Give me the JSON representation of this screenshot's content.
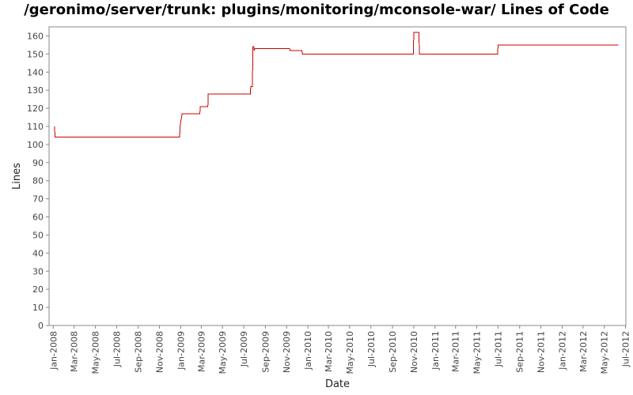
{
  "chart_data": {
    "type": "line",
    "title": "/geronimo/server/trunk: plugins/monitoring/mconsole-war/ Lines of Code",
    "xlabel": "Date",
    "ylabel": "Lines",
    "ylim": [
      0,
      165
    ],
    "xlim": [
      "2007-12-20",
      "2012-07-02"
    ],
    "y_ticks": [
      0,
      10,
      20,
      30,
      40,
      50,
      60,
      70,
      80,
      90,
      100,
      110,
      120,
      130,
      140,
      150,
      160
    ],
    "x_ticks": [
      {
        "label": "Jan-2008",
        "date": "2008-01-01"
      },
      {
        "label": "Mar-2008",
        "date": "2008-03-01"
      },
      {
        "label": "May-2008",
        "date": "2008-05-01"
      },
      {
        "label": "Jul-2008",
        "date": "2008-07-01"
      },
      {
        "label": "Sep-2008",
        "date": "2008-09-01"
      },
      {
        "label": "Nov-2008",
        "date": "2008-11-01"
      },
      {
        "label": "Jan-2009",
        "date": "2009-01-01"
      },
      {
        "label": "Mar-2009",
        "date": "2009-03-01"
      },
      {
        "label": "May-2009",
        "date": "2009-05-01"
      },
      {
        "label": "Jul-2009",
        "date": "2009-07-01"
      },
      {
        "label": "Sep-2009",
        "date": "2009-09-01"
      },
      {
        "label": "Nov-2009",
        "date": "2009-11-01"
      },
      {
        "label": "Jan-2010",
        "date": "2010-01-01"
      },
      {
        "label": "Mar-2010",
        "date": "2010-03-01"
      },
      {
        "label": "May-2010",
        "date": "2010-05-01"
      },
      {
        "label": "Jul-2010",
        "date": "2010-07-01"
      },
      {
        "label": "Sep-2010",
        "date": "2010-09-01"
      },
      {
        "label": "Nov-2010",
        "date": "2010-11-01"
      },
      {
        "label": "Jan-2011",
        "date": "2011-01-01"
      },
      {
        "label": "Mar-2011",
        "date": "2011-03-01"
      },
      {
        "label": "May-2011",
        "date": "2011-05-01"
      },
      {
        "label": "Jul-2011",
        "date": "2011-07-01"
      },
      {
        "label": "Sep-2011",
        "date": "2011-09-01"
      },
      {
        "label": "Nov-2011",
        "date": "2011-11-01"
      },
      {
        "label": "Jan-2012",
        "date": "2012-01-01"
      },
      {
        "label": "Mar-2012",
        "date": "2012-03-01"
      },
      {
        "label": "May-2012",
        "date": "2012-05-01"
      },
      {
        "label": "Jul-2012",
        "date": "2012-07-01"
      }
    ],
    "series": [
      {
        "color": "#cc0000",
        "points": [
          {
            "x": "2008-01-05",
            "y": 110
          },
          {
            "x": "2008-01-06",
            "y": 104
          },
          {
            "x": "2008-12-29",
            "y": 104
          },
          {
            "x": "2008-12-30",
            "y": 110
          },
          {
            "x": "2009-01-05",
            "y": 117
          },
          {
            "x": "2009-02-25",
            "y": 117
          },
          {
            "x": "2009-02-26",
            "y": 121
          },
          {
            "x": "2009-03-20",
            "y": 121
          },
          {
            "x": "2009-03-21",
            "y": 128
          },
          {
            "x": "2009-07-20",
            "y": 128
          },
          {
            "x": "2009-07-21",
            "y": 132
          },
          {
            "x": "2009-07-26",
            "y": 132
          },
          {
            "x": "2009-07-27",
            "y": 154
          },
          {
            "x": "2009-07-30",
            "y": 154
          },
          {
            "x": "2009-07-31",
            "y": 152
          },
          {
            "x": "2009-08-02",
            "y": 153
          },
          {
            "x": "2009-11-10",
            "y": 153
          },
          {
            "x": "2009-11-11",
            "y": 152
          },
          {
            "x": "2009-12-15",
            "y": 152
          },
          {
            "x": "2009-12-16",
            "y": 150
          },
          {
            "x": "2010-10-31",
            "y": 150
          },
          {
            "x": "2010-11-01",
            "y": 162
          },
          {
            "x": "2010-11-16",
            "y": 162
          },
          {
            "x": "2010-11-17",
            "y": 150
          },
          {
            "x": "2011-06-30",
            "y": 150
          },
          {
            "x": "2011-07-01",
            "y": 155
          },
          {
            "x": "2012-06-10",
            "y": 155
          }
        ]
      }
    ],
    "grid": false,
    "background": "#ffffff",
    "axis_color": "#888888"
  }
}
